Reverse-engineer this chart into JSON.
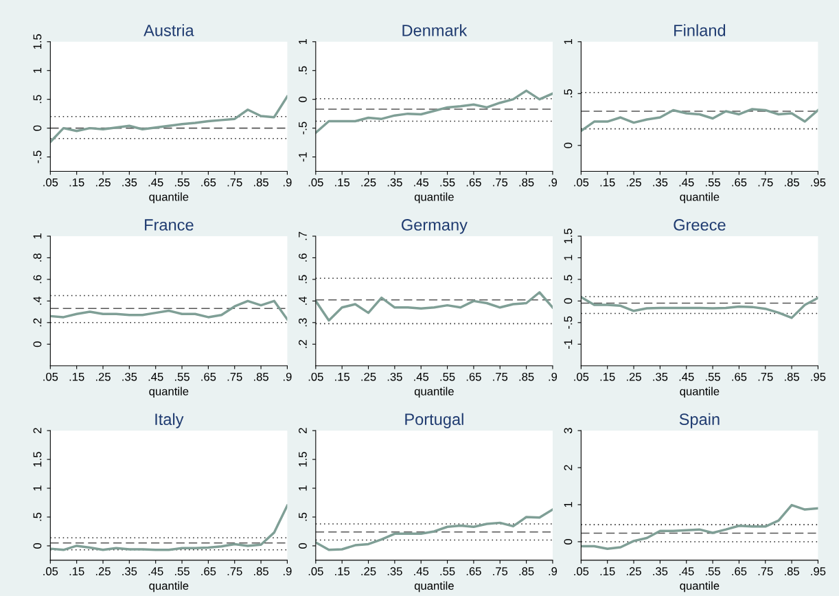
{
  "chart_data": [
    {
      "type": "line",
      "title": "Austria",
      "xlabel": "quantile",
      "x": [
        0.05,
        0.1,
        0.15,
        0.2,
        0.25,
        0.3,
        0.35,
        0.4,
        0.45,
        0.5,
        0.55,
        0.6,
        0.65,
        0.7,
        0.75,
        0.8,
        0.85,
        0.9,
        0.95
      ],
      "series": [
        {
          "color": "#7f9f96",
          "values": [
            -0.24,
            0,
            -0.05,
            0,
            -0.02,
            0.01,
            0.04,
            -0.02,
            0.01,
            0.04,
            0.07,
            0.09,
            0.12,
            0.14,
            0.16,
            0.32,
            0.21,
            0.19,
            0.55
          ]
        }
      ],
      "xlim": [
        0.05,
        0.95
      ],
      "xticks": [
        {
          "value": 0.05,
          "label": ".05"
        },
        {
          "value": 0.15,
          "label": ".15"
        },
        {
          "value": 0.25,
          "label": ".25"
        },
        {
          "value": 0.35,
          "label": ".35"
        },
        {
          "value": 0.45,
          "label": ".45"
        },
        {
          "value": 0.55,
          "label": ".55"
        },
        {
          "value": 0.65,
          "label": ".65"
        },
        {
          "value": 0.75,
          "label": ".75"
        },
        {
          "value": 0.85,
          "label": ".85"
        },
        {
          "value": 0.95,
          "label": ".9"
        }
      ],
      "ylim": [
        -0.75,
        1.5
      ],
      "yticks": [
        {
          "value": -0.5,
          "label": "-.5"
        },
        0,
        {
          "value": 0.5,
          "label": ".5"
        },
        1,
        1.5
      ],
      "ref_lines": [
        {
          "axis": "y",
          "value": 0,
          "line_style": "dashed",
          "color": "#555555"
        },
        {
          "axis": "y",
          "value": 0.2,
          "line_style": "dotted",
          "color": "#222222"
        },
        {
          "axis": "y",
          "value": -0.18,
          "line_style": "dotted",
          "color": "#222222"
        }
      ],
      "grid": false,
      "legend": false
    },
    {
      "type": "line",
      "title": "Denmark",
      "xlabel": "quantile",
      "x": [
        0.05,
        0.1,
        0.15,
        0.2,
        0.25,
        0.3,
        0.35,
        0.4,
        0.45,
        0.5,
        0.55,
        0.6,
        0.65,
        0.7,
        0.75,
        0.8,
        0.85,
        0.9,
        0.95
      ],
      "series": [
        {
          "color": "#7f9f96",
          "values": [
            -0.58,
            -0.38,
            -0.38,
            -0.38,
            -0.32,
            -0.34,
            -0.28,
            -0.25,
            -0.26,
            -0.2,
            -0.14,
            -0.12,
            -0.09,
            -0.14,
            -0.06,
            0,
            0.15,
            0,
            0.1
          ]
        }
      ],
      "xlim": [
        0.05,
        0.95
      ],
      "xticks": [
        {
          "value": 0.05,
          "label": ".05"
        },
        {
          "value": 0.15,
          "label": ".15"
        },
        {
          "value": 0.25,
          "label": ".25"
        },
        {
          "value": 0.35,
          "label": ".35"
        },
        {
          "value": 0.45,
          "label": ".45"
        },
        {
          "value": 0.55,
          "label": ".55"
        },
        {
          "value": 0.65,
          "label": ".65"
        },
        {
          "value": 0.75,
          "label": ".75"
        },
        {
          "value": 0.85,
          "label": ".85"
        },
        {
          "value": 0.95,
          "label": ".9"
        }
      ],
      "ylim": [
        -1.25,
        1
      ],
      "yticks": [
        -1,
        {
          "value": -0.5,
          "label": "-.5"
        },
        0,
        {
          "value": 0.5,
          "label": ".5"
        },
        1
      ],
      "ref_lines": [
        {
          "axis": "y",
          "value": -0.17,
          "line_style": "dashed",
          "color": "#555555"
        },
        {
          "axis": "y",
          "value": 0.01,
          "line_style": "dotted",
          "color": "#222222"
        },
        {
          "axis": "y",
          "value": -0.38,
          "line_style": "dotted",
          "color": "#222222"
        }
      ],
      "grid": false,
      "legend": false
    },
    {
      "type": "line",
      "title": "Finland",
      "xlabel": "quantile",
      "x": [
        0.05,
        0.1,
        0.15,
        0.2,
        0.25,
        0.3,
        0.35,
        0.4,
        0.45,
        0.5,
        0.55,
        0.6,
        0.65,
        0.7,
        0.75,
        0.8,
        0.85,
        0.9,
        0.95
      ],
      "series": [
        {
          "color": "#7f9f96",
          "values": [
            0.14,
            0.23,
            0.23,
            0.27,
            0.22,
            0.25,
            0.27,
            0.34,
            0.31,
            0.3,
            0.26,
            0.33,
            0.3,
            0.35,
            0.34,
            0.3,
            0.31,
            0.23,
            0.34
          ]
        }
      ],
      "xlim": [
        0.05,
        0.95
      ],
      "xticks": [
        {
          "value": 0.05,
          "label": ".05"
        },
        {
          "value": 0.15,
          "label": ".15"
        },
        {
          "value": 0.25,
          "label": ".25"
        },
        {
          "value": 0.35,
          "label": ".35"
        },
        {
          "value": 0.45,
          "label": ".45"
        },
        {
          "value": 0.55,
          "label": ".55"
        },
        {
          "value": 0.65,
          "label": ".65"
        },
        {
          "value": 0.75,
          "label": ".75"
        },
        {
          "value": 0.85,
          "label": ".85"
        },
        {
          "value": 0.95,
          "label": ".95"
        }
      ],
      "ylim": [
        -0.25,
        1
      ],
      "yticks": [
        0,
        {
          "value": 0.5,
          "label": ".5"
        },
        1
      ],
      "ref_lines": [
        {
          "axis": "y",
          "value": 0.33,
          "line_style": "dashed",
          "color": "#555555"
        },
        {
          "axis": "y",
          "value": 0.51,
          "line_style": "dotted",
          "color": "#222222"
        },
        {
          "axis": "y",
          "value": 0.16,
          "line_style": "dotted",
          "color": "#222222"
        }
      ],
      "grid": false,
      "legend": false
    },
    {
      "type": "line",
      "title": "France",
      "xlabel": "quantile",
      "x": [
        0.05,
        0.1,
        0.15,
        0.2,
        0.25,
        0.3,
        0.35,
        0.4,
        0.45,
        0.5,
        0.55,
        0.6,
        0.65,
        0.7,
        0.75,
        0.8,
        0.85,
        0.9,
        0.95
      ],
      "series": [
        {
          "color": "#7f9f96",
          "values": [
            0.26,
            0.25,
            0.28,
            0.3,
            0.28,
            0.28,
            0.27,
            0.27,
            0.29,
            0.31,
            0.28,
            0.28,
            0.25,
            0.27,
            0.35,
            0.4,
            0.36,
            0.4,
            0.23
          ]
        }
      ],
      "xlim": [
        0.05,
        0.95
      ],
      "xticks": [
        {
          "value": 0.05,
          "label": ".05"
        },
        {
          "value": 0.15,
          "label": ".15"
        },
        {
          "value": 0.25,
          "label": ".25"
        },
        {
          "value": 0.35,
          "label": ".35"
        },
        {
          "value": 0.45,
          "label": ".45"
        },
        {
          "value": 0.55,
          "label": ".55"
        },
        {
          "value": 0.65,
          "label": ".65"
        },
        {
          "value": 0.75,
          "label": ".75"
        },
        {
          "value": 0.85,
          "label": ".85"
        },
        {
          "value": 0.95,
          "label": ".9"
        }
      ],
      "ylim": [
        -0.2,
        1
      ],
      "yticks": [
        0,
        {
          "value": 0.2,
          "label": ".2"
        },
        {
          "value": 0.4,
          "label": ".4"
        },
        {
          "value": 0.6,
          "label": ".6"
        },
        {
          "value": 0.8,
          "label": ".8"
        },
        1
      ],
      "ref_lines": [
        {
          "axis": "y",
          "value": 0.33,
          "line_style": "dashed",
          "color": "#555555"
        },
        {
          "axis": "y",
          "value": 0.45,
          "line_style": "dotted",
          "color": "#222222"
        },
        {
          "axis": "y",
          "value": 0.2,
          "line_style": "dotted",
          "color": "#222222"
        }
      ],
      "grid": false,
      "legend": false
    },
    {
      "type": "line",
      "title": "Germany",
      "xlabel": "quantile",
      "x": [
        0.05,
        0.1,
        0.15,
        0.2,
        0.25,
        0.3,
        0.35,
        0.4,
        0.45,
        0.5,
        0.55,
        0.6,
        0.65,
        0.7,
        0.75,
        0.8,
        0.85,
        0.9,
        0.95
      ],
      "series": [
        {
          "color": "#7f9f96",
          "values": [
            0.4,
            0.31,
            0.37,
            0.385,
            0.345,
            0.415,
            0.37,
            0.37,
            0.365,
            0.37,
            0.38,
            0.37,
            0.4,
            0.39,
            0.37,
            0.385,
            0.39,
            0.44,
            0.37
          ]
        }
      ],
      "xlim": [
        0.05,
        0.95
      ],
      "xticks": [
        {
          "value": 0.05,
          "label": ".05"
        },
        {
          "value": 0.15,
          "label": ".15"
        },
        {
          "value": 0.25,
          "label": ".25"
        },
        {
          "value": 0.35,
          "label": ".35"
        },
        {
          "value": 0.45,
          "label": ".45"
        },
        {
          "value": 0.55,
          "label": ".55"
        },
        {
          "value": 0.65,
          "label": ".65"
        },
        {
          "value": 0.75,
          "label": ".75"
        },
        {
          "value": 0.85,
          "label": ".85"
        },
        {
          "value": 0.95,
          "label": ".9"
        }
      ],
      "ylim": [
        0.1,
        0.7
      ],
      "yticks": [
        {
          "value": 0.2,
          "label": ".2"
        },
        {
          "value": 0.3,
          "label": ".3"
        },
        {
          "value": 0.4,
          "label": ".4"
        },
        {
          "value": 0.5,
          "label": ".5"
        },
        {
          "value": 0.6,
          "label": ".6"
        },
        {
          "value": 0.7,
          "label": ".7"
        }
      ],
      "ref_lines": [
        {
          "axis": "y",
          "value": 0.405,
          "line_style": "dashed",
          "color": "#555555"
        },
        {
          "axis": "y",
          "value": 0.505,
          "line_style": "dotted",
          "color": "#222222"
        },
        {
          "axis": "y",
          "value": 0.295,
          "line_style": "dotted",
          "color": "#222222"
        }
      ],
      "grid": false,
      "legend": false
    },
    {
      "type": "line",
      "title": "Greece",
      "xlabel": "quantile",
      "x": [
        0.05,
        0.1,
        0.15,
        0.2,
        0.25,
        0.3,
        0.35,
        0.4,
        0.45,
        0.5,
        0.55,
        0.6,
        0.65,
        0.7,
        0.75,
        0.8,
        0.85,
        0.9,
        0.95
      ],
      "series": [
        {
          "color": "#7f9f96",
          "values": [
            0.09,
            -0.09,
            -0.09,
            -0.11,
            -0.23,
            -0.17,
            -0.16,
            -0.16,
            -0.16,
            -0.16,
            -0.17,
            -0.16,
            -0.13,
            -0.14,
            -0.18,
            -0.27,
            -0.39,
            -0.09,
            0.07
          ]
        }
      ],
      "xlim": [
        0.05,
        0.95
      ],
      "xticks": [
        {
          "value": 0.05,
          "label": ".05"
        },
        {
          "value": 0.15,
          "label": ".15"
        },
        {
          "value": 0.25,
          "label": ".25"
        },
        {
          "value": 0.35,
          "label": ".35"
        },
        {
          "value": 0.45,
          "label": ".45"
        },
        {
          "value": 0.55,
          "label": ".55"
        },
        {
          "value": 0.65,
          "label": ".65"
        },
        {
          "value": 0.75,
          "label": ".75"
        },
        {
          "value": 0.85,
          "label": ".85"
        },
        {
          "value": 0.95,
          "label": ".95"
        }
      ],
      "ylim": [
        -1.5,
        1.5
      ],
      "yticks": [
        -1,
        {
          "value": -0.5,
          "label": "-.5"
        },
        0,
        {
          "value": 0.5,
          "label": ".5"
        },
        1,
        1.5
      ],
      "ref_lines": [
        {
          "axis": "y",
          "value": -0.05,
          "line_style": "dashed",
          "color": "#555555"
        },
        {
          "axis": "y",
          "value": 0.1,
          "line_style": "dotted",
          "color": "#222222"
        },
        {
          "axis": "y",
          "value": -0.29,
          "line_style": "dotted",
          "color": "#222222"
        }
      ],
      "grid": false,
      "legend": false
    },
    {
      "type": "line",
      "title": "Italy",
      "xlabel": "quantile",
      "x": [
        0.05,
        0.1,
        0.15,
        0.2,
        0.25,
        0.3,
        0.35,
        0.4,
        0.45,
        0.5,
        0.55,
        0.6,
        0.65,
        0.7,
        0.75,
        0.8,
        0.85,
        0.9,
        0.95
      ],
      "series": [
        {
          "color": "#7f9f96",
          "values": [
            -0.05,
            -0.07,
            0,
            -0.03,
            -0.07,
            -0.04,
            -0.06,
            -0.06,
            -0.07,
            -0.07,
            -0.04,
            -0.04,
            -0.03,
            -0.01,
            0.03,
            0,
            0.02,
            0.23,
            0.7
          ]
        }
      ],
      "xlim": [
        0.05,
        0.95
      ],
      "xticks": [
        {
          "value": 0.05,
          "label": ".05"
        },
        {
          "value": 0.15,
          "label": ".15"
        },
        {
          "value": 0.25,
          "label": ".25"
        },
        {
          "value": 0.35,
          "label": ".35"
        },
        {
          "value": 0.45,
          "label": ".45"
        },
        {
          "value": 0.55,
          "label": ".55"
        },
        {
          "value": 0.65,
          "label": ".65"
        },
        {
          "value": 0.75,
          "label": ".75"
        },
        {
          "value": 0.85,
          "label": ".85"
        },
        {
          "value": 0.95,
          "label": ".9"
        }
      ],
      "ylim": [
        -0.25,
        2
      ],
      "yticks": [
        0,
        {
          "value": 0.5,
          "label": ".5"
        },
        1,
        1.5,
        2
      ],
      "ref_lines": [
        {
          "axis": "y",
          "value": 0.05,
          "line_style": "dashed",
          "color": "#555555"
        },
        {
          "axis": "y",
          "value": 0.14,
          "line_style": "dotted",
          "color": "#222222"
        },
        {
          "axis": "y",
          "value": -0.07,
          "line_style": "dotted",
          "color": "#222222"
        }
      ],
      "grid": false,
      "legend": false
    },
    {
      "type": "line",
      "title": "Portugal",
      "xlabel": "quantile",
      "x": [
        0.05,
        0.1,
        0.15,
        0.2,
        0.25,
        0.3,
        0.35,
        0.4,
        0.45,
        0.5,
        0.55,
        0.6,
        0.65,
        0.7,
        0.75,
        0.8,
        0.85,
        0.9,
        0.95
      ],
      "series": [
        {
          "color": "#7f9f96",
          "values": [
            0.06,
            -0.07,
            -0.06,
            0.01,
            0.03,
            0.11,
            0.21,
            0.21,
            0.21,
            0.25,
            0.33,
            0.35,
            0.33,
            0.38,
            0.4,
            0.34,
            0.5,
            0.49,
            0.63
          ]
        }
      ],
      "xlim": [
        0.05,
        0.95
      ],
      "xticks": [
        {
          "value": 0.05,
          "label": ".05"
        },
        {
          "value": 0.15,
          "label": ".15"
        },
        {
          "value": 0.25,
          "label": ".25"
        },
        {
          "value": 0.35,
          "label": ".35"
        },
        {
          "value": 0.45,
          "label": ".45"
        },
        {
          "value": 0.55,
          "label": ".55"
        },
        {
          "value": 0.65,
          "label": ".65"
        },
        {
          "value": 0.75,
          "label": ".75"
        },
        {
          "value": 0.85,
          "label": ".85"
        },
        {
          "value": 0.95,
          "label": ".9"
        }
      ],
      "ylim": [
        -0.25,
        2
      ],
      "yticks": [
        0,
        {
          "value": 0.5,
          "label": ".5"
        },
        1,
        1.5,
        2
      ],
      "ref_lines": [
        {
          "axis": "y",
          "value": 0.24,
          "line_style": "dashed",
          "color": "#555555"
        },
        {
          "axis": "y",
          "value": 0.38,
          "line_style": "dotted",
          "color": "#222222"
        },
        {
          "axis": "y",
          "value": 0.1,
          "line_style": "dotted",
          "color": "#222222"
        }
      ],
      "grid": false,
      "legend": false
    },
    {
      "type": "line",
      "title": "Spain",
      "xlabel": "quantile",
      "x": [
        0.05,
        0.1,
        0.15,
        0.2,
        0.25,
        0.3,
        0.35,
        0.4,
        0.45,
        0.5,
        0.55,
        0.6,
        0.65,
        0.7,
        0.75,
        0.8,
        0.85,
        0.9,
        0.95
      ],
      "series": [
        {
          "color": "#7f9f96",
          "values": [
            -0.12,
            -0.12,
            -0.19,
            -0.15,
            0.02,
            0.1,
            0.29,
            0.29,
            0.31,
            0.33,
            0.24,
            0.33,
            0.43,
            0.41,
            0.41,
            0.57,
            0.99,
            0.87,
            0.9
          ]
        }
      ],
      "xlim": [
        0.05,
        0.95
      ],
      "xticks": [
        {
          "value": 0.05,
          "label": ".05"
        },
        {
          "value": 0.15,
          "label": ".15"
        },
        {
          "value": 0.25,
          "label": ".25"
        },
        {
          "value": 0.35,
          "label": ".35"
        },
        {
          "value": 0.45,
          "label": ".45"
        },
        {
          "value": 0.55,
          "label": ".55"
        },
        {
          "value": 0.65,
          "label": ".65"
        },
        {
          "value": 0.75,
          "label": ".75"
        },
        {
          "value": 0.85,
          "label": ".85"
        },
        {
          "value": 0.95,
          "label": ".95"
        }
      ],
      "ylim": [
        -0.5,
        3
      ],
      "yticks": [
        0,
        1,
        2,
        3
      ],
      "ref_lines": [
        {
          "axis": "y",
          "value": 0.23,
          "line_style": "dashed",
          "color": "#555555"
        },
        {
          "axis": "y",
          "value": 0.46,
          "line_style": "dotted",
          "color": "#222222"
        },
        {
          "axis": "y",
          "value": 0.0,
          "line_style": "dotted",
          "color": "#222222"
        }
      ],
      "grid": false,
      "legend": false
    }
  ]
}
